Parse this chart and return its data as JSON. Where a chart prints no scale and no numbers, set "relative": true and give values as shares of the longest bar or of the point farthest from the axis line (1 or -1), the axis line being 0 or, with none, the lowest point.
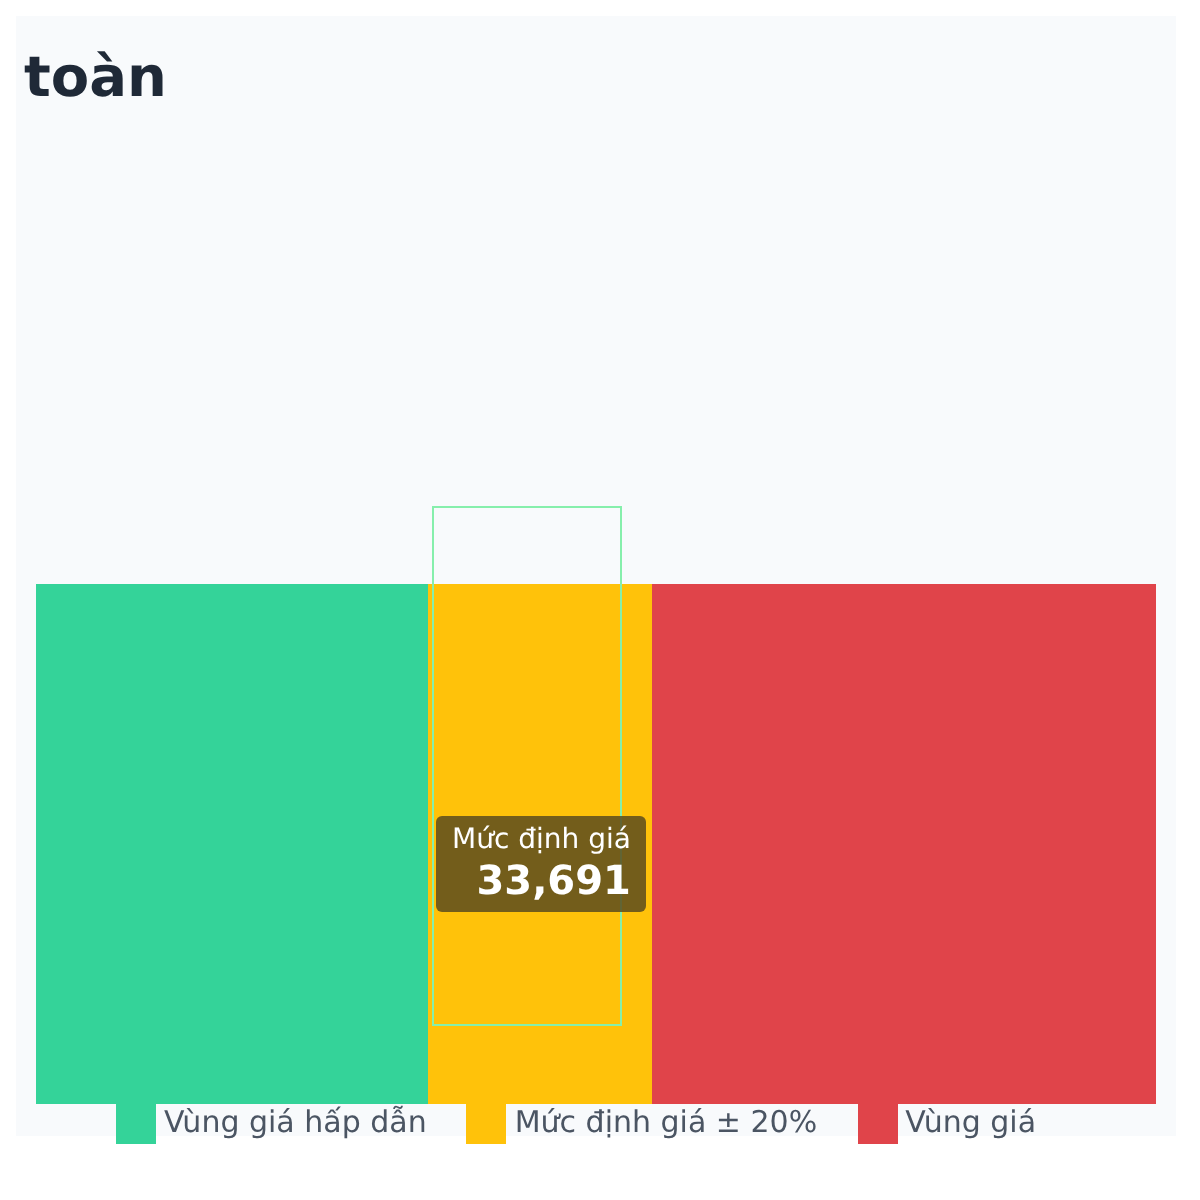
{
  "chart_data": {
    "type": "bar",
    "title": "toàn",
    "orientation": "horizontal",
    "stacked": true,
    "relative": true,
    "categories": [
      null
    ],
    "series": [
      {
        "name": "Vùng giá hấp dẫn",
        "color": "#34d399",
        "values": [
          0.35
        ]
      },
      {
        "name": "Mức định giá ± 20%",
        "color": "#ffc20a",
        "values": [
          0.2
        ]
      },
      {
        "name": "Vùng giá",
        "color": "#e0444a",
        "values": [
          0.45
        ]
      }
    ],
    "annotations": [
      "Mức định giá",
      "33,691"
    ],
    "legend": "bottom",
    "grid": false
  }
}
